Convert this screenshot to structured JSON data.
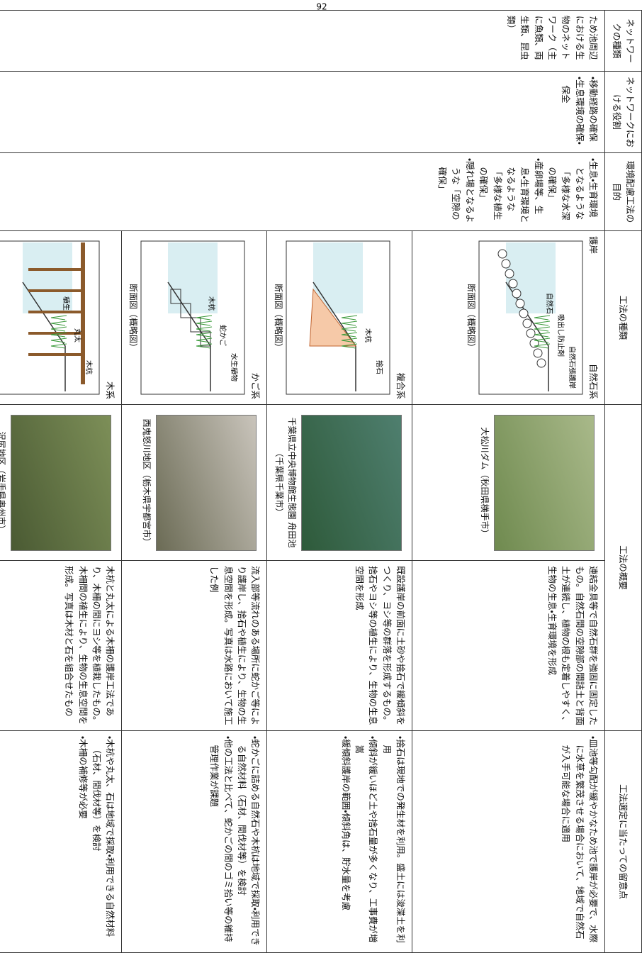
{
  "page_number": "92",
  "header": {
    "network_type": "ネットワークの種類",
    "network_role": "ネットワークにおける役割",
    "purpose": "環境配慮工法の目的",
    "method_type": "工法の種類",
    "summary": "工法の概要",
    "notes": "工法選定に当たっての留意点",
    "revetment": "護岸"
  },
  "network": {
    "type": "ため池周辺における生物のネットワーク（主に魚類、両生類、昆虫類）",
    "roles": [
      "移動経路の確保",
      "生息環境の確保・保全"
    ],
    "purposes": [
      "生息・生育環境となるような「多様な水深の確保」",
      "産卵場等、生息・生育環境となるような「多様な植生の確保」",
      "隠れ場となるような「空隙の確保」"
    ]
  },
  "rows": [
    {
      "method": "自然石系",
      "diagram_labels": [
        "自然石張護岸",
        "吸出し防止剤",
        "自然石"
      ],
      "diagram_caption": "断面図（概略図）",
      "photo_caption": "大松川ダム（秋田県横手市）",
      "summary": "連結金具等で自然石群を強固に固定したもの。自然石間の空隙部の間詰土と背面土が連続し、植物の根も定着しやすく、生物の生息・生育環境を形成",
      "notes": [
        "皿池等勾配が緩やかなため池で護岸が必要で、水際に水草を繁茂させる場合において、地域で自然石が入手可能な場合に適用"
      ]
    },
    {
      "method": "複合系",
      "diagram_labels": [
        "捨石",
        "木杭"
      ],
      "diagram_caption": "断面図（概略図）",
      "photo_caption": "千葉県立中央博物館生態園 舟田池（千葉県千葉市）",
      "summary": "既設護岸の前面に土砂や捨石で緩傾斜をつくり、ヨシ等の群落を形成するもの。捨石やヨシ等の植生により、生物の生息空間を形成",
      "notes": [
        "捨石は現地での発生材を利用。盛土には浚渫土を利用",
        "傾斜が緩いほど土や捨石量が多くなり、工事費が増嵩",
        "緩傾斜護岸の範囲・傾斜角は、貯水量を考慮"
      ]
    },
    {
      "method": "かご系",
      "diagram_labels": [
        "水生植物",
        "蛇かご",
        "木杭"
      ],
      "diagram_caption": "断面図（概略図）",
      "photo_caption": "西鬼怒川地区（栃木県宇都宮市）",
      "summary": "流入部等流れのある場所に蛇かご等により護岸し、捨石や植生により、生物の生息空間を形成。写真は水路において施工した例",
      "notes": [
        "蛇かごに詰める自然石や木杭は地域で採取・利用できる自然材料（石材、間伐材等）を検討",
        "他の工法と比べて、蛇かごの間のゴミ拾い等の維持管理作業が課題"
      ]
    },
    {
      "method": "木系",
      "diagram_labels": [
        "木杭",
        "丸太",
        "植生"
      ],
      "diagram_caption": "断面図（概略図）",
      "photo_caption": "沢尻地区（岩手県奥州市）",
      "summary": "木杭と丸太による木柵の護岸工法であり、木柵の間にヨシ等を植栽したもの。木柵間の植生により、生物の生息空間を形成。写真は木材と石を組合せたもの",
      "notes": [
        "木杭や丸太、石は地域で採取・利用できる自然材料（石材、間伐材等）を検討",
        "木柵の補修等が必要"
      ]
    }
  ]
}
